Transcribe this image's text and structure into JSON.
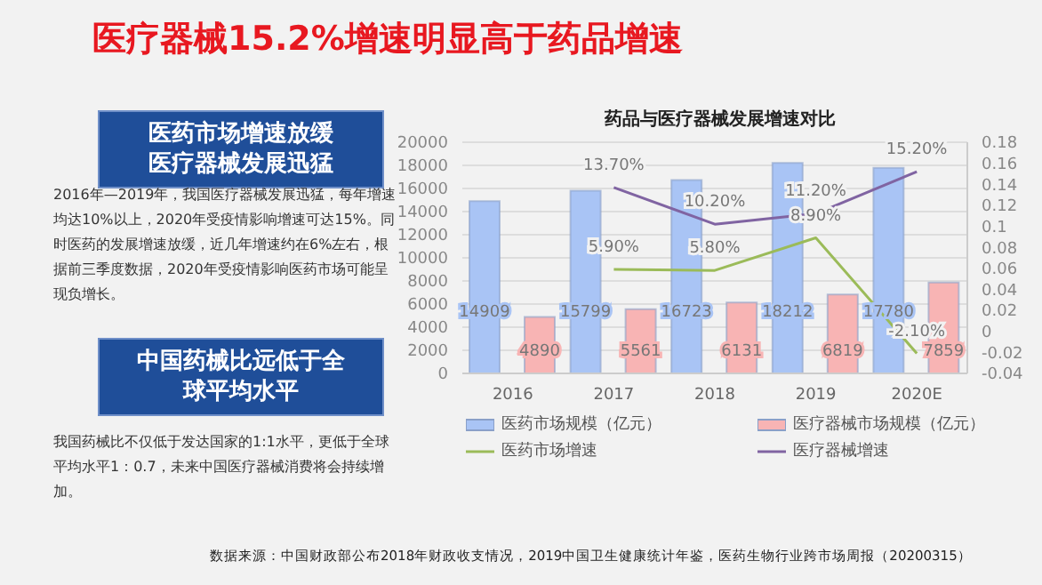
{
  "chart_data": {
    "type": "bar",
    "title": "医疗器械15.2%增速明显高于药品增速",
    "subtitle": "药品与医疗器械发展增速对比",
    "annotations": [
      "医药市场增速放缓医疗器械发展迅猛",
      "2016年—2019年，我国医疗器械发展迅猛，每年增速均达10%以上，2020年受疫情影响增速可达15%。同时医药的发展增速放缓，近几年增速约在6%左右，根据前三季度数据，2020年受疫情影响医药市场可能呈现负增长。",
      "中国药械比远低于全球平均水平",
      "我国药械比不仅低于发达国家的1:1水平，更低于全球平均水平1：0.7，未来中国医疗器械消费将会持续增加。",
      "数据来源：中国财政部公布2018年财政收支情况，2019中国卫生健康统计年鉴，医药生物行业跨市场周报（20200315）"
    ],
    "categories": [
      "2016",
      "2017",
      "2018",
      "2019",
      "2020E"
    ],
    "series": [
      {
        "name": "医药市场规模（亿元）",
        "color": "#a9c4f5",
        "values": [
          14909,
          15799,
          16723,
          18212,
          17780
        ]
      },
      {
        "name": "医疗器械市场规模（亿元）",
        "color": "#f8b4b4",
        "values": [
          4890,
          5561,
          6131,
          6819,
          7859
        ]
      },
      {
        "name": "医药市场增速",
        "type": "line",
        "axis": "y2",
        "color": "#9bbb59",
        "values": [
          null,
          0.059,
          0.058,
          0.089,
          -0.021
        ],
        "value_labels": [
          null,
          "5.90%",
          "5.80%",
          "8.90%",
          "-2.10%"
        ]
      },
      {
        "name": "医疗器械增速",
        "type": "line",
        "axis": "y2",
        "color": "#8064a2",
        "values": [
          null,
          0.137,
          0.102,
          0.112,
          0.152
        ],
        "value_labels": [
          null,
          "13.70%",
          "10.20%",
          "11.20%",
          "15.20%"
        ]
      }
    ],
    "ylim": [
      0,
      20000
    ],
    "yticks": [
      0,
      2000,
      4000,
      6000,
      8000,
      10000,
      12000,
      14000,
      16000,
      18000,
      20000
    ],
    "y2lim": [
      -0.04,
      0.18
    ],
    "y2ticks": [
      -0.04,
      -0.02,
      0,
      0.02,
      0.04,
      0.06,
      0.08,
      0.1,
      0.12,
      0.14,
      0.16,
      0.18
    ],
    "data_labels": true,
    "grid": "y",
    "legend": "bottom",
    "marker": "none"
  }
}
